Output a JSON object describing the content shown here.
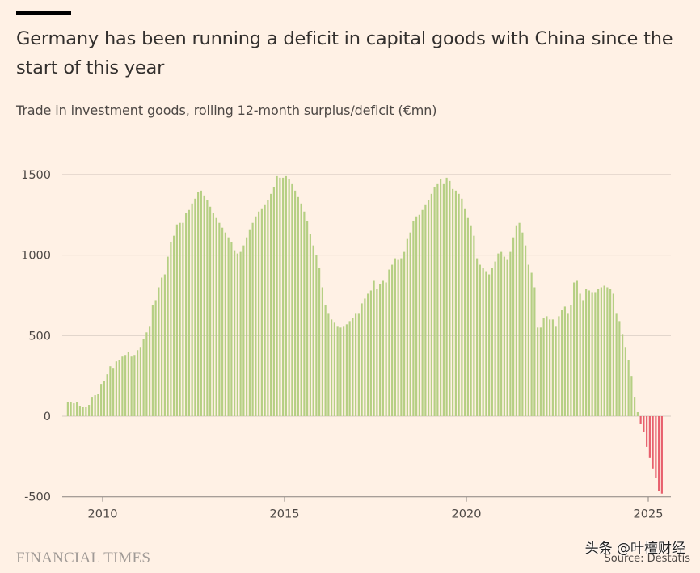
{
  "header": {
    "title": "Germany has been running a deficit in capital goods with China since the start of this year",
    "subtitle": "Trade in investment goods, rolling 12-month surplus/deficit (€mn)"
  },
  "footer": {
    "brand": "FINANCIAL TIMES",
    "source": "Source: Destatis",
    "watermark": "头条 @叶檀财经"
  },
  "colors": {
    "background": "#fff1e5",
    "surplus": "#b5cf83",
    "deficit": "#e8606d",
    "gridline": "#d9cdc4",
    "text": "#33302e"
  },
  "chart_data": {
    "type": "bar",
    "title": "Germany has been running a deficit in capital goods with China since the start of this year",
    "subtitle": "Trade in investment goods, rolling 12-month surplus/deficit (€mn)",
    "xlabel": "",
    "ylabel": "€mn",
    "x_start": "2009-01",
    "frequency": "monthly",
    "x_range": [
      2009.0,
      2025.67
    ],
    "ylim": [
      -500,
      1500
    ],
    "yticks": [
      -500,
      0,
      500,
      1000,
      1500
    ],
    "ytick_labels": [
      "-500",
      "0",
      "500",
      "1000",
      "1500"
    ],
    "xticks": [
      2010,
      2015,
      2020,
      2025
    ],
    "xtick_labels": [
      "2010",
      "2015",
      "2020",
      "2025"
    ],
    "grid": true,
    "legend": "none",
    "series": [
      {
        "name": "Rolling 12-month surplus/deficit",
        "values": [
          90,
          90,
          80,
          90,
          65,
          60,
          60,
          70,
          120,
          130,
          140,
          200,
          220,
          260,
          310,
          300,
          340,
          350,
          370,
          380,
          400,
          370,
          380,
          410,
          430,
          480,
          520,
          560,
          690,
          720,
          800,
          860,
          880,
          990,
          1080,
          1120,
          1190,
          1200,
          1200,
          1260,
          1280,
          1320,
          1350,
          1390,
          1400,
          1370,
          1340,
          1300,
          1260,
          1230,
          1200,
          1170,
          1140,
          1110,
          1080,
          1030,
          1010,
          1020,
          1060,
          1110,
          1160,
          1200,
          1240,
          1270,
          1290,
          1310,
          1340,
          1380,
          1420,
          1490,
          1480,
          1480,
          1490,
          1470,
          1440,
          1400,
          1360,
          1320,
          1270,
          1210,
          1130,
          1060,
          1000,
          920,
          800,
          690,
          640,
          600,
          580,
          560,
          550,
          560,
          570,
          590,
          610,
          640,
          640,
          700,
          730,
          760,
          780,
          840,
          790,
          820,
          840,
          830,
          910,
          940,
          980,
          970,
          980,
          1020,
          1100,
          1140,
          1210,
          1240,
          1250,
          1280,
          1310,
          1340,
          1380,
          1420,
          1440,
          1470,
          1440,
          1480,
          1460,
          1410,
          1400,
          1380,
          1350,
          1290,
          1230,
          1180,
          1120,
          980,
          940,
          920,
          900,
          880,
          920,
          960,
          1010,
          1020,
          990,
          970,
          1020,
          1110,
          1180,
          1200,
          1140,
          1060,
          940,
          890,
          800,
          550,
          550,
          610,
          620,
          600,
          600,
          560,
          620,
          660,
          680,
          640,
          690,
          830,
          840,
          760,
          720,
          790,
          780,
          770,
          770,
          790,
          800,
          810,
          800,
          790,
          760,
          640,
          590,
          510,
          430,
          350,
          250,
          120,
          25,
          -50,
          -100,
          -190,
          -260,
          -325,
          -385,
          -465,
          -480
        ]
      }
    ]
  }
}
